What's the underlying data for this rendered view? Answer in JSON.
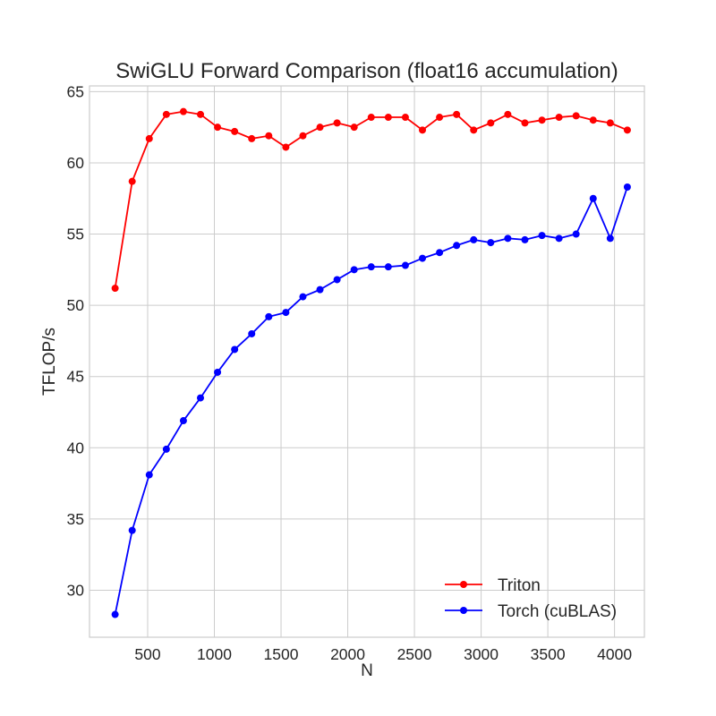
{
  "chart_data": {
    "type": "line",
    "title": "SwiGLU Forward Comparison (float16 accumulation)",
    "xlabel": "N",
    "ylabel": "TFLOP/s",
    "xlim": [
      64,
      4224
    ],
    "ylim": [
      26.7,
      65.4
    ],
    "xticks": [
      500,
      1000,
      1500,
      2000,
      2500,
      3000,
      3500,
      4000
    ],
    "yticks": [
      30,
      35,
      40,
      45,
      50,
      55,
      60,
      65
    ],
    "grid": true,
    "legend_position": "bottom-right",
    "x": [
      256,
      384,
      512,
      640,
      768,
      896,
      1024,
      1152,
      1280,
      1408,
      1536,
      1664,
      1792,
      1920,
      2048,
      2176,
      2304,
      2432,
      2560,
      2688,
      2816,
      2944,
      3072,
      3200,
      3328,
      3456,
      3584,
      3712,
      3840,
      3968,
      4096
    ],
    "series": [
      {
        "name": "Triton",
        "color": "#ff0000",
        "values": [
          51.2,
          58.7,
          61.7,
          63.4,
          63.6,
          63.4,
          62.5,
          62.2,
          61.7,
          61.9,
          61.1,
          61.9,
          62.5,
          62.8,
          62.5,
          63.2,
          63.2,
          63.2,
          62.3,
          63.2,
          63.4,
          62.3,
          62.8,
          63.4,
          62.8,
          63.0,
          63.2,
          63.3,
          63.0,
          62.8,
          62.3
        ]
      },
      {
        "name": "Torch (cuBLAS)",
        "color": "#0000ff",
        "values": [
          28.3,
          34.2,
          38.1,
          39.9,
          41.9,
          43.5,
          45.3,
          46.9,
          48.0,
          49.2,
          49.5,
          50.6,
          51.1,
          51.8,
          52.5,
          52.7,
          52.7,
          52.8,
          53.3,
          53.7,
          54.2,
          54.6,
          54.4,
          54.7,
          54.6,
          54.9,
          54.7,
          55.0,
          57.5,
          54.7,
          58.3
        ]
      }
    ]
  }
}
